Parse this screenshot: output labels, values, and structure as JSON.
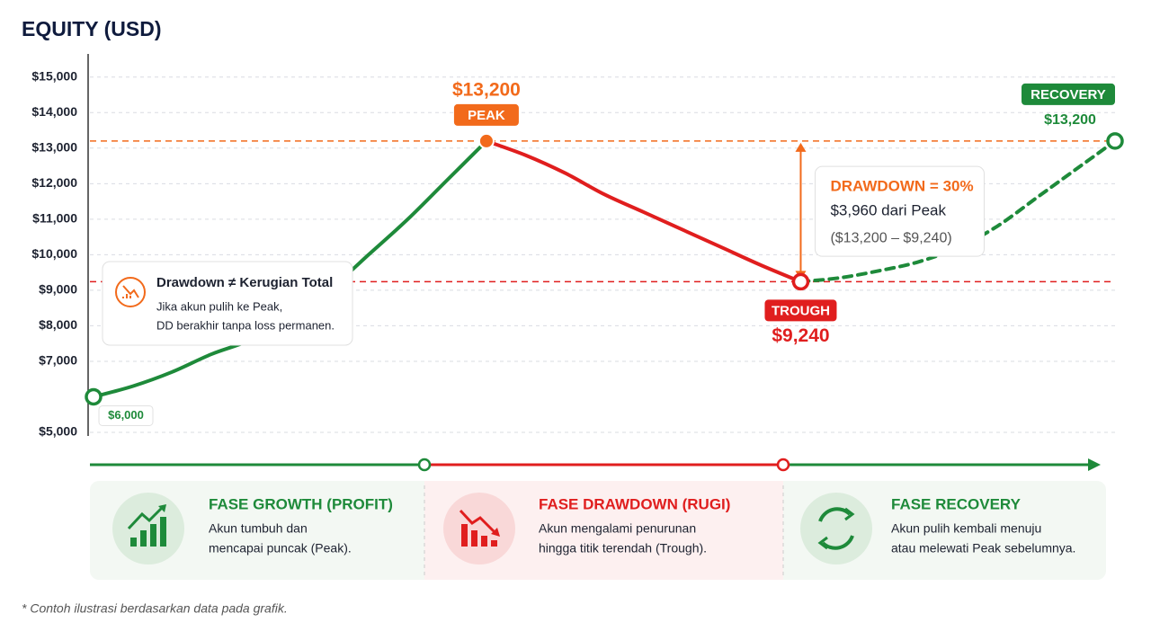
{
  "chart_data": {
    "type": "line",
    "title": "EQUITY (USD)",
    "categories": [
      null,
      null,
      null,
      null,
      null,
      null,
      null,
      null,
      null,
      null,
      null,
      null,
      null,
      null,
      null,
      null,
      null,
      null,
      null,
      null,
      null,
      null,
      null,
      null,
      null,
      null,
      null
    ],
    "series": [
      {
        "name": "FASE GROWTH (PROFIT)",
        "color": "#1e8a3a",
        "style": "solid",
        "values": [
          6000,
          6300,
          6700,
          7200,
          7600,
          8200,
          9000,
          10000,
          11000,
          12100,
          13200,
          null,
          null,
          null,
          null,
          null,
          null,
          null,
          null,
          null,
          null,
          null,
          null,
          null,
          null,
          null,
          null
        ],
        "value_labels": [
          "$6,000",
          null,
          null,
          null,
          null,
          null,
          null,
          null,
          null,
          null,
          "$13,200",
          null,
          null,
          null,
          null,
          null,
          null,
          null,
          null,
          null,
          null,
          null,
          null,
          null,
          null,
          null,
          null
        ]
      },
      {
        "name": "FASE DRAWDOWN (RUGI)",
        "color": "#e01e1e",
        "style": "solid",
        "values": [
          null,
          null,
          null,
          null,
          null,
          null,
          null,
          null,
          null,
          null,
          13200,
          12800,
          12300,
          11700,
          11200,
          10700,
          10200,
          9700,
          9240,
          null,
          null,
          null,
          null,
          null,
          null,
          null,
          null
        ],
        "value_labels": [
          null,
          null,
          null,
          null,
          null,
          null,
          null,
          null,
          null,
          null,
          null,
          null,
          null,
          null,
          null,
          null,
          null,
          null,
          "$9,240",
          null,
          null,
          null,
          null,
          null,
          null,
          null,
          null
        ]
      },
      {
        "name": "FASE RECOVERY",
        "color": "#1e8a3a",
        "style": "dashed",
        "values": [
          null,
          null,
          null,
          null,
          null,
          null,
          null,
          null,
          null,
          null,
          null,
          null,
          null,
          null,
          null,
          null,
          null,
          null,
          9240,
          9350,
          9550,
          9800,
          10200,
          10800,
          11600,
          12400,
          13200
        ],
        "value_labels": [
          null,
          null,
          null,
          null,
          null,
          null,
          null,
          null,
          null,
          null,
          null,
          null,
          null,
          null,
          null,
          null,
          null,
          null,
          null,
          null,
          null,
          null,
          null,
          null,
          null,
          null,
          "$13,200"
        ]
      }
    ],
    "ylim": [
      5000,
      15500
    ],
    "yticks": [
      {
        "value": 5000,
        "label": "$5,000"
      },
      {
        "value": 7000,
        "label": "$7,000"
      },
      {
        "value": 8000,
        "label": "$8,000"
      },
      {
        "value": 9000,
        "label": "$9,000"
      },
      {
        "value": 10000,
        "label": "$10,000"
      },
      {
        "value": 11000,
        "label": "$11,000"
      },
      {
        "value": 12000,
        "label": "$12,000"
      },
      {
        "value": 13000,
        "label": "$13,000"
      },
      {
        "value": 14000,
        "label": "$14,000"
      },
      {
        "value": 15000,
        "label": "$15,000"
      }
    ],
    "grid": true,
    "annotations": {
      "peak": "PEAK",
      "trough": "TROUGH",
      "recovery": "RECOVERY"
    },
    "drawdown": {
      "title": "DRAWDOWN = 30%",
      "amount": "$3,960 dari Peak",
      "formula": "($13,200 – $9,240)"
    },
    "note": {
      "title": "Drawdown ≠ Kerugian Total",
      "lines": [
        "Jika akun pulih ke Peak,",
        "DD berakhir tanpa loss permanen."
      ]
    }
  },
  "phases": [
    {
      "text": [
        "Akun tumbuh dan",
        "mencapai puncak (Peak)."
      ]
    },
    {
      "text": [
        "Akun mengalami penurunan",
        "hingga titik terendah (Trough)."
      ]
    },
    {
      "text": [
        "Akun pulih kembali menuju",
        "atau melewati Peak sebelumnya."
      ]
    }
  ],
  "footnote": "* Contoh ilustrasi berdasarkan data pada grafik."
}
